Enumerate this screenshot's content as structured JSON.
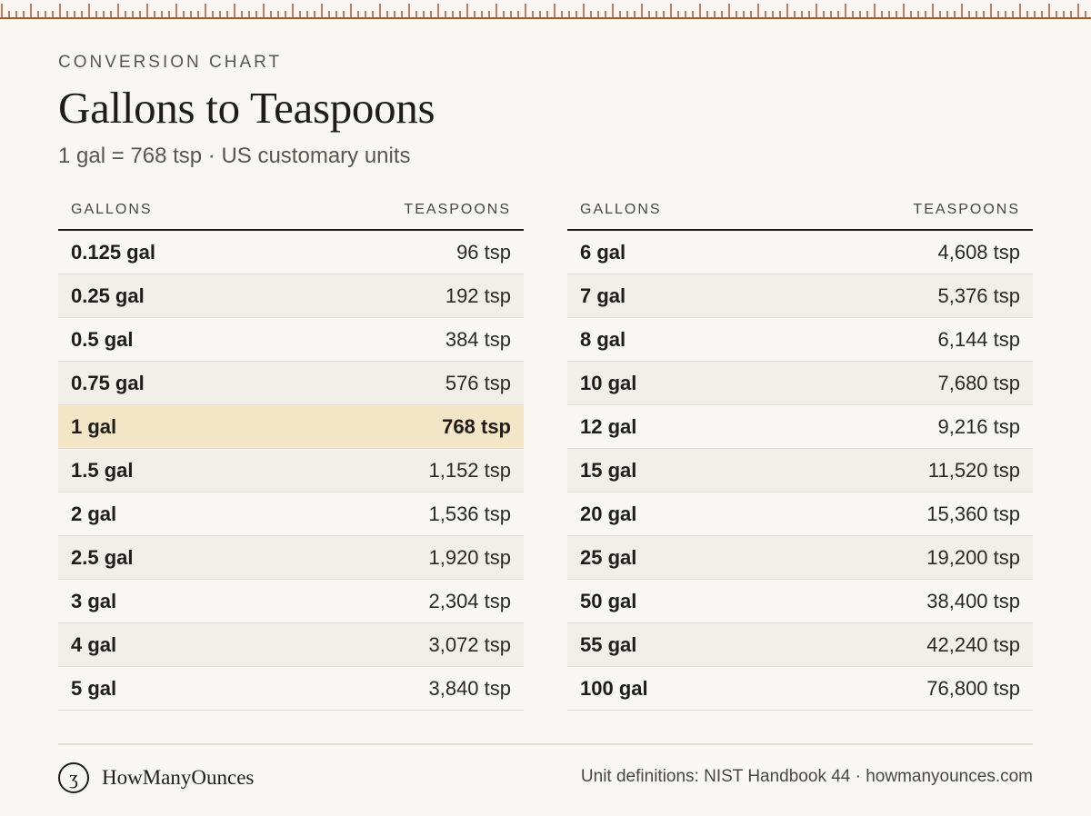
{
  "header": {
    "eyebrow": "CONVERSION CHART",
    "title": "Gallons to Teaspoons",
    "subtitle": "1 gal = 768 tsp · US customary units"
  },
  "columns": {
    "gallons": "GALLONS",
    "teaspoons": "TEASPOONS"
  },
  "colors": {
    "background": "#f8f7f3",
    "accent_ruler": "#b4551f",
    "highlight_row": "#f3e6c6",
    "alt_row": "#f1efe9"
  },
  "chart_data": {
    "type": "table",
    "title": "Gallons to Teaspoons",
    "columns": [
      "GALLONS",
      "TEASPOONS"
    ],
    "highlight": "1 gal",
    "tables": [
      {
        "rows": [
          {
            "gal": "0.125 gal",
            "tsp": "96 tsp"
          },
          {
            "gal": "0.25 gal",
            "tsp": "192 tsp"
          },
          {
            "gal": "0.5 gal",
            "tsp": "384 tsp"
          },
          {
            "gal": "0.75 gal",
            "tsp": "576 tsp"
          },
          {
            "gal": "1 gal",
            "tsp": "768 tsp"
          },
          {
            "gal": "1.5 gal",
            "tsp": "1,152 tsp"
          },
          {
            "gal": "2 gal",
            "tsp": "1,536 tsp"
          },
          {
            "gal": "2.5 gal",
            "tsp": "1,920 tsp"
          },
          {
            "gal": "3 gal",
            "tsp": "2,304 tsp"
          },
          {
            "gal": "4 gal",
            "tsp": "3,072 tsp"
          },
          {
            "gal": "5 gal",
            "tsp": "3,840 tsp"
          }
        ]
      },
      {
        "rows": [
          {
            "gal": "6 gal",
            "tsp": "4,608 tsp"
          },
          {
            "gal": "7 gal",
            "tsp": "5,376 tsp"
          },
          {
            "gal": "8 gal",
            "tsp": "6,144 tsp"
          },
          {
            "gal": "10 gal",
            "tsp": "7,680 tsp"
          },
          {
            "gal": "12 gal",
            "tsp": "9,216 tsp"
          },
          {
            "gal": "15 gal",
            "tsp": "11,520 tsp"
          },
          {
            "gal": "20 gal",
            "tsp": "15,360 tsp"
          },
          {
            "gal": "25 gal",
            "tsp": "19,200 tsp"
          },
          {
            "gal": "50 gal",
            "tsp": "38,400 tsp"
          },
          {
            "gal": "55 gal",
            "tsp": "42,240 tsp"
          },
          {
            "gal": "100 gal",
            "tsp": "76,800 tsp"
          }
        ]
      }
    ]
  },
  "footer": {
    "logo_glyph": "ʒ",
    "logo_icon": "ounce-symbol-icon",
    "brand": "HowManyOunces",
    "source": "Unit definitions: NIST Handbook 44 · howmanyounces.com"
  }
}
